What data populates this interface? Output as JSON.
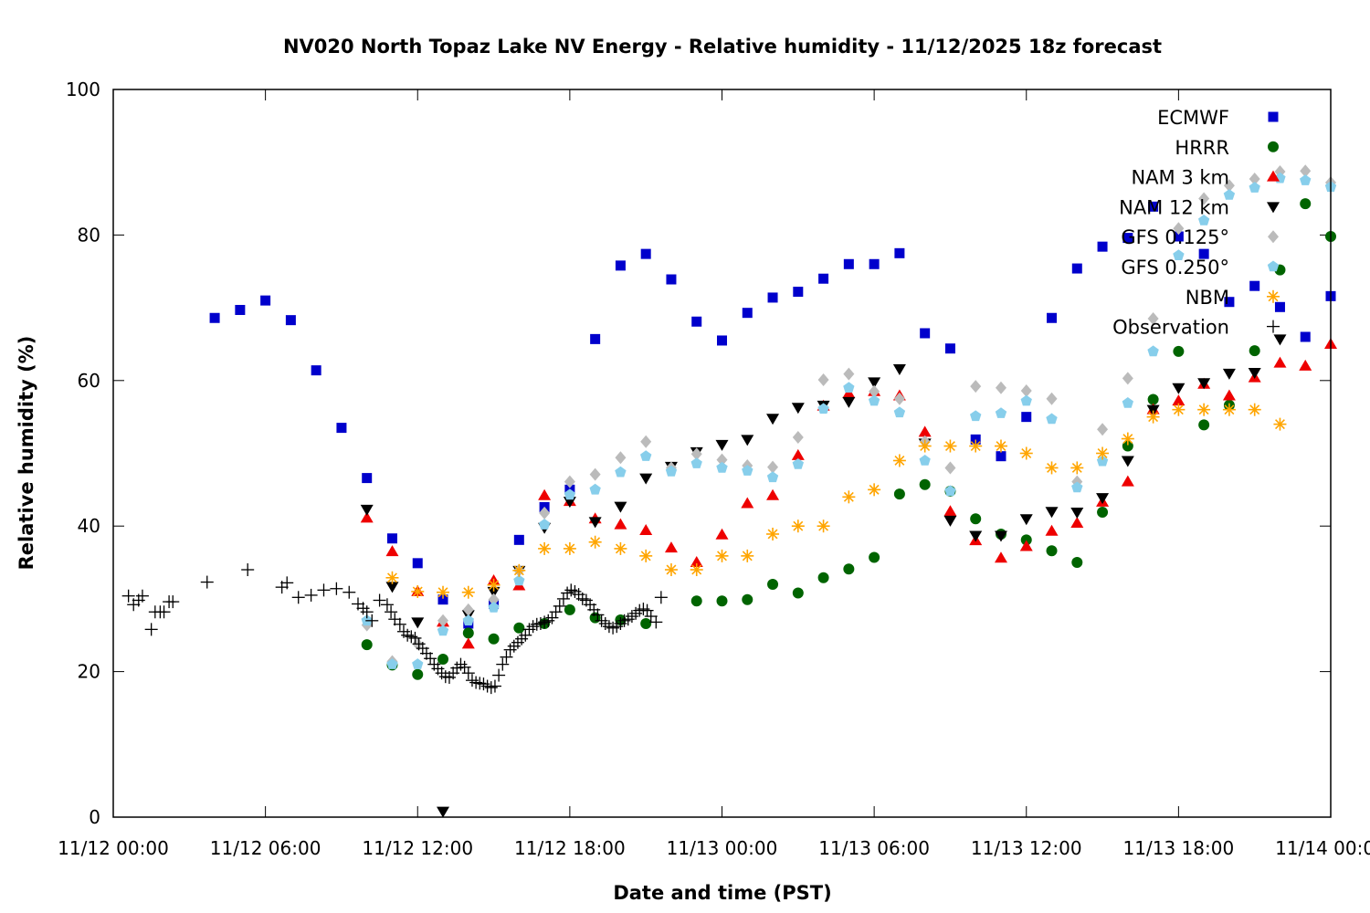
{
  "chart_data": {
    "type": "scatter",
    "title": "NV020 North Topaz Lake NV Energy - Relative humidity - 11/12/2025 18z forecast",
    "xlabel": "Date and time (PST)",
    "ylabel": "Relative humidity (%)",
    "x_units": "hours since 11/12 00:00 PST",
    "xlim": [
      0,
      48
    ],
    "ylim": [
      0,
      100
    ],
    "grid": false,
    "legend_position": "top-right",
    "x_ticks": [
      {
        "value": 0,
        "label": "11/12 00:00"
      },
      {
        "value": 6,
        "label": "11/12 06:00"
      },
      {
        "value": 12,
        "label": "11/12 12:00"
      },
      {
        "value": 18,
        "label": "11/12 18:00"
      },
      {
        "value": 24,
        "label": "11/13 00:00"
      },
      {
        "value": 30,
        "label": "11/13 06:00"
      },
      {
        "value": 36,
        "label": "11/13 12:00"
      },
      {
        "value": 42,
        "label": "11/13 18:00"
      },
      {
        "value": 48,
        "label": "11/14 00:00"
      }
    ],
    "y_ticks": [
      {
        "value": 0,
        "label": "0"
      },
      {
        "value": 20,
        "label": "20"
      },
      {
        "value": 40,
        "label": "40"
      },
      {
        "value": 60,
        "label": "60"
      },
      {
        "value": 80,
        "label": "80"
      },
      {
        "value": 100,
        "label": "100"
      }
    ],
    "series": [
      {
        "name": "ECMWF",
        "marker": "square",
        "color": "#0000cc",
        "x": [
          4,
          5,
          6,
          7,
          8,
          9,
          10,
          11,
          12,
          13,
          14,
          15,
          16,
          17,
          18,
          19,
          20,
          21,
          22,
          23,
          24,
          25,
          26,
          27,
          28,
          29,
          30,
          31,
          32,
          33,
          34,
          35,
          36,
          37,
          38,
          39,
          40,
          41,
          42,
          43,
          44,
          45,
          46,
          47,
          48
        ],
        "y": [
          68.6,
          69.7,
          71.0,
          68.3,
          61.4,
          53.5,
          46.6,
          38.3,
          34.9,
          29.9,
          26.6,
          29.3,
          38.1,
          42.6,
          45.0,
          65.7,
          75.8,
          77.4,
          73.9,
          68.1,
          65.5,
          69.3,
          71.4,
          72.2,
          74.0,
          76.0,
          76.0,
          77.5,
          66.5,
          64.4,
          51.9,
          49.6,
          55.0,
          68.6,
          75.4,
          78.4,
          79.6,
          83.9,
          79.8,
          77.4,
          70.8,
          73.0,
          70.1,
          66.0,
          71.6
        ]
      },
      {
        "name": "HRRR",
        "marker": "circle",
        "color": "#006400",
        "x": [
          10,
          11,
          12,
          13,
          14,
          15,
          16,
          17,
          18,
          19,
          20,
          21,
          23,
          24,
          25,
          26,
          27,
          28,
          29,
          30,
          31,
          32,
          33,
          34,
          35,
          36,
          37,
          38,
          39,
          40,
          41,
          42,
          43,
          44,
          45,
          46,
          47,
          48
        ],
        "y": [
          23.7,
          20.9,
          19.6,
          21.7,
          25.3,
          24.5,
          26.0,
          26.6,
          28.5,
          27.4,
          27.1,
          26.6,
          29.7,
          29.7,
          29.9,
          32.0,
          30.8,
          32.9,
          34.1,
          35.7,
          44.4,
          45.7,
          44.8,
          41.0,
          38.9,
          38.1,
          36.6,
          35.0,
          41.9,
          51.0,
          57.4,
          64.0,
          53.9,
          56.6,
          64.1,
          75.2,
          84.3,
          79.8
        ]
      },
      {
        "name": "NAM 3 km",
        "marker": "triangle-up",
        "color": "#ee0000",
        "x": [
          10,
          11,
          12,
          13,
          14,
          15,
          16,
          17,
          18,
          19,
          20,
          21,
          22,
          23,
          24,
          25,
          26,
          27,
          28,
          29,
          30,
          31,
          32,
          33,
          34,
          35,
          36,
          37,
          38,
          39,
          40,
          41,
          42,
          43,
          44,
          45,
          46,
          47,
          48
        ],
        "y": [
          41.1,
          36.5,
          31.0,
          26.8,
          23.8,
          32.5,
          31.8,
          44.2,
          43.4,
          41.0,
          40.2,
          39.4,
          37.0,
          35.0,
          38.8,
          43.1,
          44.2,
          49.7,
          56.5,
          58.2,
          58.5,
          57.9,
          52.9,
          42.0,
          38.0,
          35.6,
          37.2,
          39.3,
          40.4,
          43.3,
          46.1,
          56.0,
          57.2,
          59.5,
          57.9,
          60.4,
          62.4,
          62.0,
          65.0
        ]
      },
      {
        "name": "NAM 12 km",
        "marker": "triangle-down",
        "color": "#000000",
        "x": [
          10,
          11,
          12,
          13,
          14,
          15,
          16,
          17,
          18,
          19,
          20,
          21,
          22,
          23,
          24,
          25,
          26,
          27,
          28,
          29,
          30,
          31,
          32,
          33,
          34,
          35,
          36,
          37,
          38,
          39,
          40,
          41,
          42,
          43,
          44,
          45,
          46
        ],
        "y": [
          42.3,
          31.7,
          26.8,
          0.8,
          27.8,
          31.0,
          33.9,
          39.8,
          43.4,
          40.6,
          42.7,
          46.6,
          48.2,
          50.2,
          51.2,
          51.9,
          54.8,
          56.3,
          56.6,
          57.1,
          59.8,
          61.6,
          51.4,
          40.8,
          38.7,
          38.7,
          41.0,
          42.0,
          41.9,
          43.9,
          49.0,
          56.0,
          59.0,
          59.7,
          61.0,
          61.1,
          65.7
        ]
      },
      {
        "name": "GFS 0.125°",
        "marker": "diamond",
        "color": "#bbbbbb",
        "x": [
          10,
          11,
          12,
          13,
          14,
          15,
          16,
          17,
          18,
          19,
          20,
          21,
          22,
          23,
          24,
          25,
          26,
          27,
          28,
          29,
          30,
          31,
          32,
          33,
          34,
          35,
          36,
          37,
          38,
          39,
          40,
          41,
          42,
          43,
          44,
          45,
          46,
          47,
          48
        ],
        "y": [
          26.4,
          21.4,
          23.8,
          27.0,
          28.5,
          29.9,
          33.9,
          41.8,
          46.1,
          47.1,
          49.4,
          51.6,
          48.0,
          49.9,
          49.1,
          48.3,
          48.1,
          52.2,
          60.1,
          60.9,
          58.5,
          57.5,
          51.6,
          48.0,
          59.2,
          59.0,
          58.6,
          57.5,
          46.1,
          53.3,
          60.3,
          68.5,
          80.9,
          85.0,
          86.8,
          87.7,
          88.7,
          88.8,
          87.2
        ]
      },
      {
        "name": "GFS 0.250°",
        "marker": "pentagon",
        "color": "#87ceeb",
        "x": [
          10,
          11,
          12,
          13,
          14,
          15,
          16,
          17,
          18,
          19,
          20,
          21,
          22,
          23,
          24,
          25,
          26,
          27,
          28,
          29,
          30,
          31,
          32,
          33,
          34,
          35,
          36,
          37,
          38,
          39,
          40,
          41,
          42,
          43,
          44,
          45,
          46,
          47,
          48
        ],
        "y": [
          27.0,
          21.0,
          21.0,
          25.6,
          27.0,
          28.8,
          32.5,
          40.2,
          44.3,
          45.0,
          47.4,
          49.6,
          47.5,
          48.6,
          48.0,
          47.6,
          46.7,
          48.5,
          56.1,
          59.0,
          57.2,
          55.6,
          49.0,
          44.8,
          55.1,
          55.5,
          57.2,
          54.7,
          45.3,
          48.9,
          56.9,
          64.0,
          77.2,
          82.0,
          85.5,
          86.5,
          87.8,
          87.5,
          86.6
        ]
      },
      {
        "name": "NBM",
        "marker": "star",
        "color": "#ffa500",
        "x": [
          11,
          12,
          13,
          14,
          15,
          16,
          17,
          18,
          19,
          20,
          21,
          22,
          23,
          24,
          25,
          26,
          27,
          28,
          29,
          30,
          31,
          32,
          33,
          34,
          35,
          36,
          37,
          38,
          39,
          40,
          41,
          42,
          43,
          44,
          45,
          46
        ],
        "y": [
          32.9,
          31.0,
          30.9,
          30.9,
          31.9,
          33.9,
          36.9,
          36.9,
          37.8,
          36.9,
          35.9,
          34.0,
          34.0,
          35.9,
          35.9,
          38.9,
          40.0,
          40.0,
          44.0,
          45.0,
          49.0,
          51.0,
          51.0,
          51.0,
          51.0,
          50.0,
          48.0,
          48.0,
          50.0,
          52.0,
          55.0,
          56.0,
          56.0,
          56.0,
          56.0,
          54.0
        ]
      },
      {
        "name": "Observation",
        "marker": "plus",
        "color": "#000000",
        "x": [
          0.6,
          0.8,
          1.0,
          1.15,
          1.5,
          1.65,
          1.85,
          2.0,
          2.2,
          2.35,
          3.7,
          5.3,
          6.65,
          6.85,
          7.3,
          7.8,
          8.3,
          8.8,
          9.3,
          9.65,
          9.85,
          10.0,
          10.2,
          10.5,
          10.8,
          10.95,
          11.1,
          11.3,
          11.45,
          11.6,
          11.75,
          11.9,
          12.05,
          12.2,
          12.35,
          12.5,
          12.65,
          12.8,
          12.95,
          13.1,
          13.25,
          13.4,
          13.55,
          13.7,
          13.85,
          14.0,
          14.15,
          14.3,
          14.45,
          14.6,
          14.75,
          14.9,
          15.05,
          15.2,
          15.35,
          15.5,
          15.65,
          15.8,
          15.95,
          16.1,
          16.25,
          16.4,
          16.55,
          16.7,
          16.85,
          17.0,
          17.15,
          17.3,
          17.45,
          17.6,
          17.75,
          17.9,
          18.05,
          18.2,
          18.35,
          18.5,
          18.65,
          18.8,
          18.95,
          19.1,
          19.25,
          19.4,
          19.55,
          19.7,
          19.85,
          20.0,
          20.15,
          20.3,
          20.45,
          20.6,
          20.75,
          20.9,
          21.05,
          21.2,
          21.4,
          21.6
        ],
        "y": [
          30.4,
          29.2,
          29.8,
          30.4,
          25.8,
          28.2,
          28.2,
          28.2,
          29.6,
          29.6,
          32.3,
          34.0,
          31.6,
          32.2,
          30.2,
          30.5,
          31.2,
          31.4,
          30.9,
          29.3,
          28.7,
          28.2,
          27.0,
          29.8,
          29.2,
          28.2,
          27.2,
          26.5,
          25.5,
          25.0,
          24.8,
          24.6,
          23.8,
          23.2,
          22.5,
          21.8,
          21.0,
          20.4,
          19.8,
          19.3,
          19.2,
          19.8,
          20.5,
          21.0,
          20.6,
          19.8,
          18.8,
          18.5,
          18.4,
          18.3,
          18.0,
          17.8,
          18.0,
          19.5,
          21.0,
          22.0,
          23.0,
          23.5,
          24.0,
          24.5,
          25.0,
          25.8,
          26.2,
          26.5,
          26.6,
          26.8,
          27.0,
          27.4,
          28.2,
          29.0,
          30.0,
          30.8,
          31.2,
          31.0,
          30.6,
          30.0,
          29.8,
          29.2,
          28.5,
          27.8,
          27.0,
          26.6,
          26.2,
          26.0,
          26.2,
          26.6,
          27.0,
          27.2,
          27.6,
          28.0,
          28.4,
          28.6,
          28.4,
          27.6,
          26.8,
          30.2
        ]
      }
    ]
  }
}
